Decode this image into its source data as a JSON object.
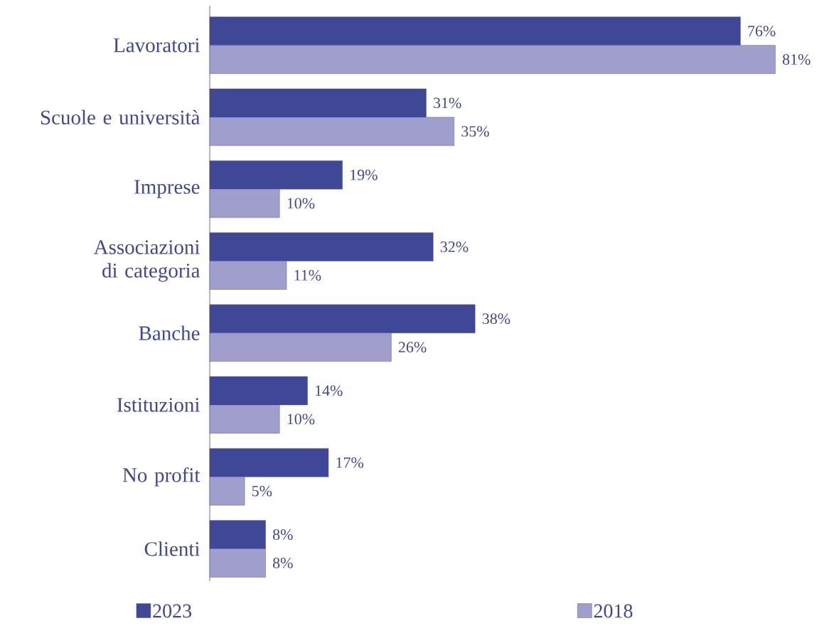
{
  "chart_data": {
    "type": "bar",
    "orientation": "horizontal",
    "categories": [
      "Lavoratori",
      "Scuole e università",
      "Imprese",
      "Associazioni di categoria",
      "Banche",
      "Istituzioni",
      "No profit",
      "Clienti"
    ],
    "series": [
      {
        "name": "2023",
        "color": "#3f4896",
        "values": [
          76,
          31,
          19,
          32,
          38,
          14,
          17,
          8
        ],
        "value_labels": [
          "76%",
          "31%",
          "19%",
          "32%",
          "38%",
          "14%",
          "17%",
          "8%"
        ]
      },
      {
        "name": "2018",
        "color": "#a09fcb",
        "values": [
          81,
          35,
          10,
          11,
          26,
          10,
          5,
          8
        ],
        "value_labels": [
          "81%",
          "35%",
          "10%",
          "11%",
          "26%",
          "10%",
          "5%",
          "8%"
        ]
      }
    ],
    "legend": "bottom"
  }
}
